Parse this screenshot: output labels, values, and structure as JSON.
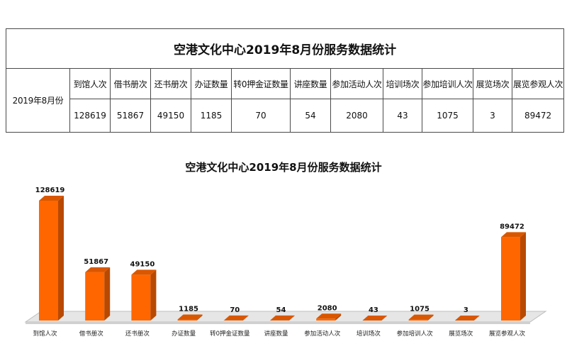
{
  "table": {
    "title": "空港文化中心2019年8月份服务数据统计",
    "row_label": "2019年8月份",
    "headers": [
      "到馆人次",
      "借书册次",
      "还书册次",
      "办证数量",
      "转0押金证数量",
      "讲座数量",
      "参加活动人次",
      "培训场次",
      "参加培训人次",
      "展览场次",
      "展览参观人次"
    ],
    "values": [
      "128619",
      "51867",
      "49150",
      "1185",
      "70",
      "54",
      "2080",
      "43",
      "1075",
      "3",
      "89472"
    ]
  },
  "chart_data": {
    "type": "bar",
    "title": "空港文化中心2019年8月份服务数据统计",
    "categories": [
      "到馆人次",
      "借书册次",
      "还书册次",
      "办证数量",
      "转0押金证数量",
      "讲座数量",
      "参加活动人次",
      "培训场次",
      "参加培训人次",
      "展览场次",
      "展览参观人次"
    ],
    "values": [
      128619,
      51867,
      49150,
      1185,
      70,
      54,
      2080,
      43,
      1075,
      3,
      89472
    ],
    "data_labels": true,
    "three_d": true,
    "xlabel": "",
    "ylabel": "",
    "ylim": [
      0,
      140000
    ],
    "y_axis_visible": false,
    "grid": false,
    "legend": "none",
    "colors": {
      "bar_front": "#FF6600",
      "bar_side": "#B84900",
      "bar_top": "#D95700",
      "floor": "#E6E6E6",
      "floor_edge": "#BDBDBD",
      "floor_front": "#D0D0D0"
    }
  }
}
